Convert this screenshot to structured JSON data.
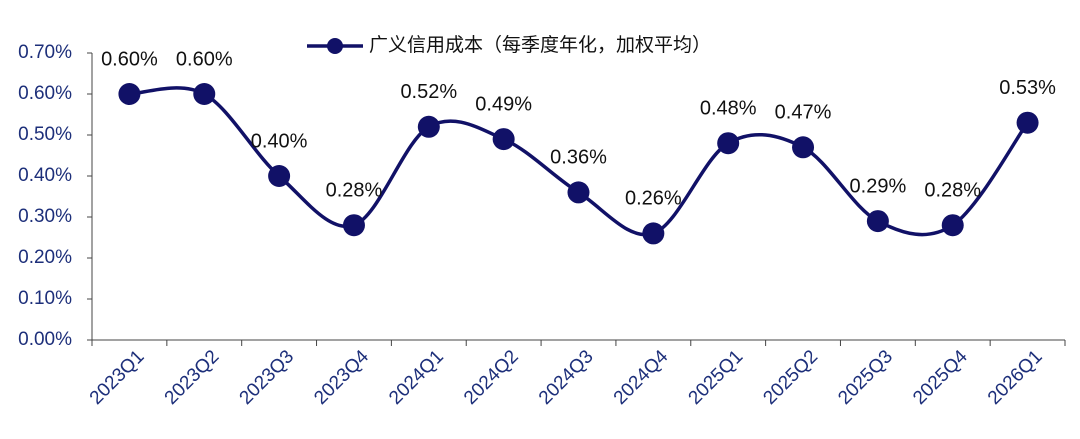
{
  "chart_data": {
    "type": "line",
    "categories": [
      "2023Q1",
      "2023Q2",
      "2023Q3",
      "2023Q4",
      "2024Q1",
      "2024Q2",
      "2024Q3",
      "2024Q4",
      "2025Q1",
      "2025Q2",
      "2025Q3",
      "2025Q4",
      "2026Q1"
    ],
    "series": [
      {
        "name": "广义信用成本（每季度年化，加权平均）",
        "color": "#111167",
        "values": [
          0.6,
          0.6,
          0.4,
          0.28,
          0.52,
          0.49,
          0.36,
          0.26,
          0.48,
          0.47,
          0.29,
          0.28,
          0.53
        ],
        "value_labels": [
          "0.60%",
          "0.60%",
          "0.40%",
          "0.28%",
          "0.52%",
          "0.49%",
          "0.36%",
          "0.26%",
          "0.48%",
          "0.47%",
          "0.29%",
          "0.28%",
          "0.53%"
        ]
      }
    ],
    "ylim": [
      0,
      0.7
    ],
    "yticks": [
      {
        "value": 0,
        "label": "0.00%"
      },
      {
        "value": 0.1,
        "label": "0.10%"
      },
      {
        "value": 0.2,
        "label": "0.20%"
      },
      {
        "value": 0.3,
        "label": "0.30%"
      },
      {
        "value": 0.4,
        "label": "0.40%"
      },
      {
        "value": 0.5,
        "label": "0.50%"
      },
      {
        "value": 0.6,
        "label": "0.60%"
      },
      {
        "value": 0.7,
        "label": "0.70%"
      }
    ],
    "smooth": true,
    "legend": "top"
  }
}
